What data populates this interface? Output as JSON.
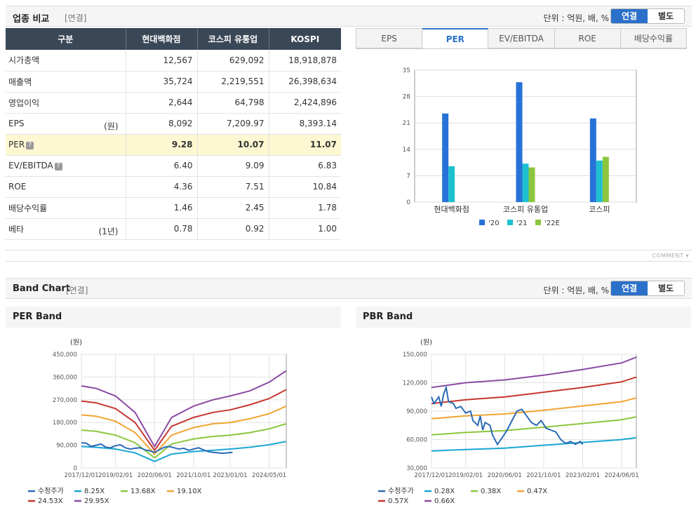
{
  "industry": {
    "title": "업종 비교",
    "sub": "[연결]",
    "unit": "단위 : 억원, 배, %",
    "toggle": {
      "on": "연결",
      "off": "별도"
    },
    "headers": [
      "구분",
      "현대백화점",
      "코스피 유통업",
      "KOSPI"
    ],
    "rows": [
      {
        "label": "시가총액",
        "unit": "",
        "q": false,
        "values": [
          "12,567",
          "629,092",
          "18,918,878"
        ]
      },
      {
        "label": "매출액",
        "unit": "",
        "q": false,
        "values": [
          "35,724",
          "2,219,551",
          "26,398,634"
        ]
      },
      {
        "label": "영업이익",
        "unit": "",
        "q": false,
        "values": [
          "2,644",
          "64,798",
          "2,424,896"
        ]
      },
      {
        "label": "EPS",
        "unit": "(원)",
        "q": false,
        "values": [
          "8,092",
          "7,209.97",
          "8,393.14"
        ]
      },
      {
        "label": "PER",
        "unit": "",
        "q": true,
        "values": [
          "9.28",
          "10.07",
          "11.07"
        ]
      },
      {
        "label": "EV/EBITDA",
        "unit": "",
        "q": true,
        "values": [
          "6.40",
          "9.09",
          "6.83"
        ]
      },
      {
        "label": "ROE",
        "unit": "",
        "q": false,
        "values": [
          "4.36",
          "7.51",
          "10.84"
        ]
      },
      {
        "label": "배당수익률",
        "unit": "",
        "q": false,
        "values": [
          "1.46",
          "2.45",
          "1.78"
        ]
      },
      {
        "label": "베타",
        "unit": "(1년)",
        "q": false,
        "values": [
          "0.78",
          "0.92",
          "1.00"
        ]
      }
    ],
    "q_icon": "?",
    "tabs": [
      "EPS",
      "PER",
      "EV/EBITDA",
      "ROE",
      "배당수익률"
    ],
    "active_tab": 1
  },
  "comment_label": "COMMENT",
  "band": {
    "title": "Band Chart",
    "sub": "[연결]",
    "unit": "단위 : 억원, 배, %",
    "toggle": {
      "on": "연결",
      "off": "별도"
    },
    "per_title": "PER Band",
    "pbr_title": "PBR Band"
  },
  "chart_data": [
    {
      "type": "bar",
      "categories": [
        "현대백화점",
        "코스피 유통업",
        "코스피"
      ],
      "series": [
        {
          "name": "'20",
          "values": [
            23.5,
            31.8,
            22.2
          ],
          "color": "#2672d8"
        },
        {
          "name": "'21",
          "values": [
            9.5,
            10.2,
            11.0
          ],
          "color": "#1ec0d0"
        },
        {
          "name": "'22E",
          "values": [
            null,
            9.2,
            12.0
          ],
          "color": "#8cc63f"
        }
      ],
      "ylim": [
        0,
        35
      ],
      "yticks": [
        0,
        7,
        14,
        21,
        28,
        35
      ],
      "legend": "bottom",
      "grid": true
    },
    {
      "type": "line",
      "ylabel": "(원)",
      "ylim": [
        0,
        450000
      ],
      "yticks": [
        "0",
        "90,000",
        "180,000",
        "270,000",
        "360,000",
        "450,000"
      ],
      "xticks": [
        "2017/12/01",
        "2019/02/01",
        "2020/06/01",
        "2021/10/01",
        "2023/01/01",
        "2024/05/01"
      ],
      "xrange": [
        "2017/12/01",
        "2024/12/01"
      ],
      "legend": "bottom",
      "series": [
        {
          "name": "수정주가",
          "color": "#2a6ab4",
          "points": [
            [
              "2017-12",
              100000
            ],
            [
              "2018-02",
              98000
            ],
            [
              "2018-04",
              85000
            ],
            [
              "2018-06",
              90000
            ],
            [
              "2018-08",
              95000
            ],
            [
              "2018-10",
              82000
            ],
            [
              "2018-12",
              80000
            ],
            [
              "2019-02",
              88000
            ],
            [
              "2019-04",
              92000
            ],
            [
              "2019-06",
              80000
            ],
            [
              "2019-08",
              75000
            ],
            [
              "2019-10",
              78000
            ],
            [
              "2019-12",
              80000
            ],
            [
              "2020-02",
              72000
            ],
            [
              "2020-04",
              68000
            ],
            [
              "2020-06",
              62000
            ],
            [
              "2020-08",
              72000
            ],
            [
              "2020-10",
              82000
            ],
            [
              "2020-12",
              85000
            ],
            [
              "2021-02",
              80000
            ],
            [
              "2021-04",
              75000
            ],
            [
              "2021-06",
              78000
            ],
            [
              "2021-08",
              70000
            ],
            [
              "2021-10",
              75000
            ],
            [
              "2021-12",
              80000
            ],
            [
              "2022-02",
              72000
            ],
            [
              "2022-04",
              65000
            ],
            [
              "2022-06",
              62000
            ],
            [
              "2022-08",
              60000
            ],
            [
              "2022-10",
              58000
            ],
            [
              "2022-12",
              60000
            ],
            [
              "2023-02",
              62000
            ]
          ]
        },
        {
          "name": "8.25X",
          "color": "#1aa6d4",
          "points": [
            [
              "2017-12",
              85000
            ],
            [
              "2018-06",
              82000
            ],
            [
              "2019-02",
              75000
            ],
            [
              "2019-10",
              60000
            ],
            [
              "2020-06",
              26000
            ],
            [
              "2021-01",
              55000
            ],
            [
              "2021-10",
              65000
            ],
            [
              "2022-06",
              70000
            ],
            [
              "2023-01",
              75000
            ],
            [
              "2023-09",
              82000
            ],
            [
              "2024-05",
              92000
            ],
            [
              "2024-12",
              105000
            ]
          ]
        },
        {
          "name": "13.68X",
          "color": "#8cc63f",
          "points": [
            [
              "2017-12",
              150000
            ],
            [
              "2018-06",
              145000
            ],
            [
              "2019-02",
              130000
            ],
            [
              "2019-10",
              100000
            ],
            [
              "2020-06",
              40000
            ],
            [
              "2021-01",
              95000
            ],
            [
              "2021-10",
              115000
            ],
            [
              "2022-06",
              125000
            ],
            [
              "2023-01",
              130000
            ],
            [
              "2023-09",
              140000
            ],
            [
              "2024-05",
              155000
            ],
            [
              "2024-12",
              175000
            ]
          ]
        },
        {
          "name": "19.10X",
          "color": "#f0a532",
          "points": [
            [
              "2017-12",
              210000
            ],
            [
              "2018-06",
              205000
            ],
            [
              "2019-02",
              185000
            ],
            [
              "2019-10",
              140000
            ],
            [
              "2020-06",
              55000
            ],
            [
              "2021-01",
              130000
            ],
            [
              "2021-10",
              160000
            ],
            [
              "2022-06",
              175000
            ],
            [
              "2023-01",
              180000
            ],
            [
              "2023-09",
              195000
            ],
            [
              "2024-05",
              215000
            ],
            [
              "2024-12",
              245000
            ]
          ]
        },
        {
          "name": "24.53X",
          "color": "#c6362f",
          "points": [
            [
              "2017-12",
              265000
            ],
            [
              "2018-06",
              258000
            ],
            [
              "2019-02",
              235000
            ],
            [
              "2019-10",
              180000
            ],
            [
              "2020-06",
              70000
            ],
            [
              "2021-01",
              165000
            ],
            [
              "2021-10",
              200000
            ],
            [
              "2022-06",
              220000
            ],
            [
              "2023-01",
              230000
            ],
            [
              "2023-09",
              250000
            ],
            [
              "2024-05",
              275000
            ],
            [
              "2024-12",
              310000
            ]
          ]
        },
        {
          "name": "29.95X",
          "color": "#8b4ba3",
          "points": [
            [
              "2017-12",
              325000
            ],
            [
              "2018-06",
              315000
            ],
            [
              "2019-02",
              285000
            ],
            [
              "2019-10",
              220000
            ],
            [
              "2020-06",
              85000
            ],
            [
              "2021-01",
              200000
            ],
            [
              "2021-10",
              245000
            ],
            [
              "2022-06",
              270000
            ],
            [
              "2023-01",
              285000
            ],
            [
              "2023-09",
              305000
            ],
            [
              "2024-05",
              340000
            ],
            [
              "2024-12",
              385000
            ]
          ]
        }
      ]
    },
    {
      "type": "line",
      "ylabel": "(원)",
      "ylim": [
        30000,
        150000
      ],
      "yticks": [
        "30,000",
        "60,000",
        "90,000",
        "120,000",
        "150,000"
      ],
      "xticks": [
        "2017/12/01",
        "2019/02/01",
        "2020/06/01",
        "2021/10/01",
        "2023/02/01",
        "2024/06/01"
      ],
      "xrange": [
        "2017/12/01",
        "2024/12/01"
      ],
      "legend": "bottom",
      "series": [
        {
          "name": "수정주가",
          "color": "#2a6ab4",
          "points": [
            [
              "2017-12",
              105000
            ],
            [
              "2018-01",
              98000
            ],
            [
              "2018-03",
              105000
            ],
            [
              "2018-04",
              95000
            ],
            [
              "2018-05",
              108000
            ],
            [
              "2018-06",
              115000
            ],
            [
              "2018-07",
              100000
            ],
            [
              "2018-09",
              98000
            ],
            [
              "2018-10",
              93000
            ],
            [
              "2018-12",
              95000
            ],
            [
              "2019-02",
              88000
            ],
            [
              "2019-04",
              90000
            ],
            [
              "2019-05",
              80000
            ],
            [
              "2019-07",
              75000
            ],
            [
              "2019-08",
              85000
            ],
            [
              "2019-09",
              70000
            ],
            [
              "2019-10",
              78000
            ],
            [
              "2019-12",
              75000
            ],
            [
              "2020-01",
              65000
            ],
            [
              "2020-03",
              55000
            ],
            [
              "2020-05",
              62000
            ],
            [
              "2020-07",
              70000
            ],
            [
              "2020-09",
              80000
            ],
            [
              "2020-11",
              90000
            ],
            [
              "2021-01",
              92000
            ],
            [
              "2021-03",
              85000
            ],
            [
              "2021-05",
              78000
            ],
            [
              "2021-07",
              75000
            ],
            [
              "2021-09",
              80000
            ],
            [
              "2021-11",
              72000
            ],
            [
              "2022-01",
              70000
            ],
            [
              "2022-03",
              68000
            ],
            [
              "2022-05",
              60000
            ],
            [
              "2022-07",
              56000
            ],
            [
              "2022-09",
              58000
            ],
            [
              "2022-11",
              55000
            ],
            [
              "2023-01",
              58000
            ],
            [
              "2023-02",
              55000
            ]
          ]
        },
        {
          "name": "0.28X",
          "color": "#1aa6d4",
          "points": [
            [
              "2017-12",
              48000
            ],
            [
              "2019-02",
              49500
            ],
            [
              "2020-06",
              51000
            ],
            [
              "2021-10",
              54000
            ],
            [
              "2023-02",
              57000
            ],
            [
              "2024-06",
              60000
            ],
            [
              "2024-12",
              62000
            ]
          ]
        },
        {
          "name": "0.38X",
          "color": "#8cc63f",
          "points": [
            [
              "2017-12",
              65000
            ],
            [
              "2019-02",
              67500
            ],
            [
              "2020-06",
              69500
            ],
            [
              "2021-10",
              73000
            ],
            [
              "2023-02",
              77000
            ],
            [
              "2024-06",
              81000
            ],
            [
              "2024-12",
              84000
            ]
          ]
        },
        {
          "name": "0.47X",
          "color": "#f0a532",
          "points": [
            [
              "2017-12",
              82000
            ],
            [
              "2019-02",
              85000
            ],
            [
              "2020-06",
              87000
            ],
            [
              "2021-10",
              91000
            ],
            [
              "2023-02",
              95500
            ],
            [
              "2024-06",
              100000
            ],
            [
              "2024-12",
              104000
            ]
          ]
        },
        {
          "name": "0.57X",
          "color": "#c6362f",
          "points": [
            [
              "2017-12",
              98000
            ],
            [
              "2019-02",
              102000
            ],
            [
              "2020-06",
              105000
            ],
            [
              "2021-10",
              110000
            ],
            [
              "2023-02",
              115000
            ],
            [
              "2024-06",
              121000
            ],
            [
              "2024-12",
              126000
            ]
          ]
        },
        {
          "name": "0.66X",
          "color": "#8b4ba3",
          "points": [
            [
              "2017-12",
              115000
            ],
            [
              "2019-02",
              120000
            ],
            [
              "2020-06",
              123000
            ],
            [
              "2021-10",
              128000
            ],
            [
              "2023-02",
              134000
            ],
            [
              "2024-06",
              141000
            ],
            [
              "2024-12",
              147000
            ]
          ]
        }
      ]
    }
  ]
}
